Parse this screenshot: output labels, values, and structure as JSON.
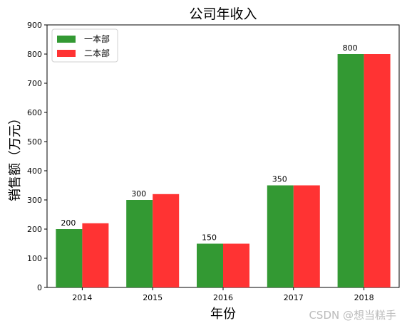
{
  "chart_data": {
    "type": "bar",
    "title": "公司年收入",
    "xlabel": "年份",
    "ylabel": "销售额（万元）",
    "categories": [
      "2014",
      "2015",
      "2016",
      "2017",
      "2018"
    ],
    "series": [
      {
        "name": "一本部",
        "values": [
          200,
          300,
          150,
          350,
          800
        ],
        "color": "#339933",
        "show_labels": true
      },
      {
        "name": "二本部",
        "values": [
          220,
          320,
          150,
          350,
          800
        ],
        "color": "#ff3333",
        "show_labels": false
      }
    ],
    "ylim": [
      0,
      900
    ],
    "yticks": [
      0,
      100,
      200,
      300,
      400,
      500,
      600,
      700,
      800,
      900
    ],
    "grid": false,
    "legend": "top-left"
  },
  "watermark": "CSDN @想当糕手"
}
